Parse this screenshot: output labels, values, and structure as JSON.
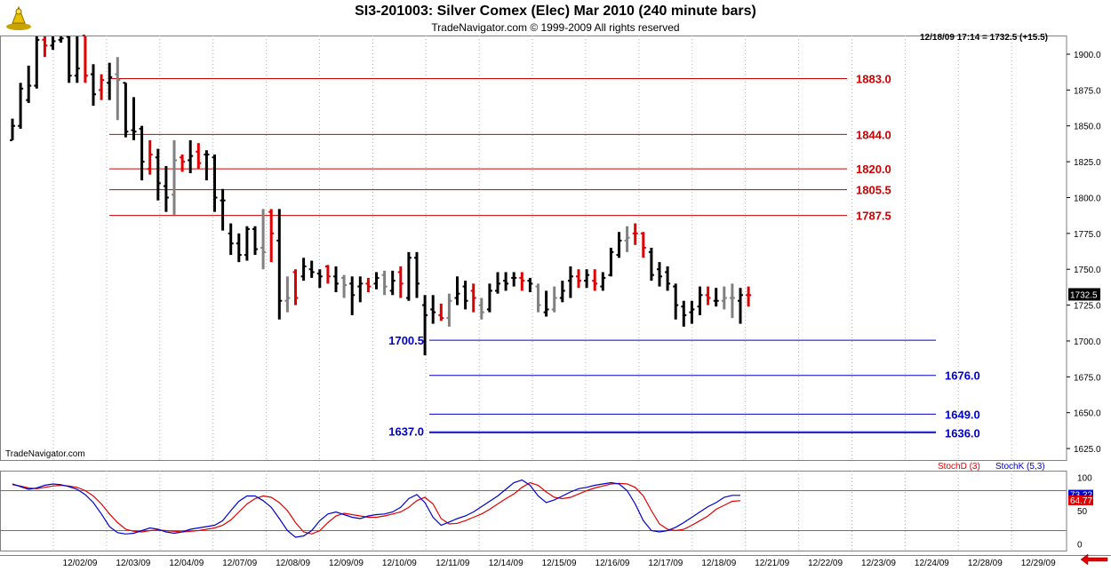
{
  "header": {
    "title": "SI3-201003:  Silver Comex (Elec) Mar 2010  (240 minute bars)",
    "subtitle": "TradeNavigator.com © 1999-2009 All rights reserved",
    "last_info": "12/18/09 17:14 = 1732.5 (+15.5)",
    "watermark": "TradeNavigator.com"
  },
  "colors": {
    "up_bar": "#000000",
    "down_bar": "#e00000",
    "neutral_bar": "#808080",
    "resistance": "#cc0000",
    "support": "#0000cc",
    "stoch_d": "#e00000",
    "stoch_k": "#0000cc"
  },
  "chart_data": [
    {
      "type": "ohlc",
      "ylim": [
        1617,
        1913
      ],
      "yticks": [
        "1625.0",
        "1650.0",
        "1675.0",
        "1700.0",
        "1725.0",
        "1750.0",
        "1775.0",
        "1800.0",
        "1825.0",
        "1850.0",
        "1875.0",
        "1900.0"
      ],
      "x_labels": [
        "12/02/09",
        "12/03/09",
        "12/04/09",
        "12/07/09",
        "12/08/09",
        "12/09/09",
        "12/10/09",
        "12/11/09",
        "12/14/09",
        "12/15/09",
        "12/16/09",
        "12/17/09",
        "12/18/09",
        "12/21/09",
        "12/22/09",
        "12/23/09",
        "12/24/09",
        "12/28/09",
        "12/29/09"
      ],
      "last_price": "1732.5",
      "bars": [
        {
          "o": 1840,
          "h": 1855,
          "l": 1840,
          "c": 1850,
          "col": "up"
        },
        {
          "o": 1850,
          "h": 1880,
          "l": 1848,
          "c": 1876,
          "col": "up"
        },
        {
          "o": 1868,
          "h": 1892,
          "l": 1866,
          "c": 1878,
          "col": "up"
        },
        {
          "o": 1878,
          "h": 1913,
          "l": 1876,
          "c": 1910,
          "col": "up"
        },
        {
          "o": 1910,
          "h": 1913,
          "l": 1898,
          "c": 1906,
          "col": "down"
        },
        {
          "o": 1906,
          "h": 1913,
          "l": 1903,
          "c": 1909,
          "col": "up"
        },
        {
          "o": 1910,
          "h": 1913,
          "l": 1908,
          "c": 1911,
          "col": "up"
        },
        {
          "o": 1912,
          "h": 1913,
          "l": 1880,
          "c": 1885,
          "col": "up"
        },
        {
          "o": 1885,
          "h": 1913,
          "l": 1880,
          "c": 1890,
          "col": "up"
        },
        {
          "o": 1913,
          "h": 1913,
          "l": 1880,
          "c": 1885,
          "col": "down"
        },
        {
          "o": 1886,
          "h": 1893,
          "l": 1864,
          "c": 1872,
          "col": "up"
        },
        {
          "o": 1875,
          "h": 1886,
          "l": 1868,
          "c": 1882,
          "col": "down"
        },
        {
          "o": 1880,
          "h": 1894,
          "l": 1868,
          "c": 1884,
          "col": "up"
        },
        {
          "o": 1886,
          "h": 1898,
          "l": 1854,
          "c": 1882,
          "col": "neutral"
        },
        {
          "o": 1880,
          "h": 1880,
          "l": 1842,
          "c": 1846,
          "col": "up"
        },
        {
          "o": 1847,
          "h": 1870,
          "l": 1840,
          "c": 1846,
          "col": "up"
        },
        {
          "o": 1848,
          "h": 1850,
          "l": 1812,
          "c": 1825,
          "col": "up"
        },
        {
          "o": 1820,
          "h": 1840,
          "l": 1816,
          "c": 1830,
          "col": "down"
        },
        {
          "o": 1828,
          "h": 1834,
          "l": 1798,
          "c": 1810,
          "col": "up"
        },
        {
          "o": 1808,
          "h": 1822,
          "l": 1790,
          "c": 1800,
          "col": "up"
        },
        {
          "o": 1802,
          "h": 1840,
          "l": 1788,
          "c": 1826,
          "col": "neutral"
        },
        {
          "o": 1828,
          "h": 1830,
          "l": 1818,
          "c": 1825,
          "col": "down"
        },
        {
          "o": 1826,
          "h": 1840,
          "l": 1817,
          "c": 1829,
          "col": "up"
        },
        {
          "o": 1832,
          "h": 1838,
          "l": 1820,
          "c": 1824,
          "col": "down"
        },
        {
          "o": 1830,
          "h": 1833,
          "l": 1812,
          "c": 1830,
          "col": "up"
        },
        {
          "o": 1828,
          "h": 1830,
          "l": 1790,
          "c": 1800,
          "col": "up"
        },
        {
          "o": 1798,
          "h": 1806,
          "l": 1777,
          "c": 1798,
          "col": "up"
        },
        {
          "o": 1775,
          "h": 1782,
          "l": 1760,
          "c": 1768,
          "col": "up"
        },
        {
          "o": 1768,
          "h": 1775,
          "l": 1755,
          "c": 1760,
          "col": "up"
        },
        {
          "o": 1760,
          "h": 1780,
          "l": 1756,
          "c": 1778,
          "col": "up"
        },
        {
          "o": 1778,
          "h": 1780,
          "l": 1760,
          "c": 1764,
          "col": "up"
        },
        {
          "o": 1765,
          "h": 1792,
          "l": 1750,
          "c": 1762,
          "col": "neutral"
        },
        {
          "o": 1790,
          "h": 1792,
          "l": 1755,
          "c": 1775,
          "col": "down"
        },
        {
          "o": 1770,
          "h": 1792,
          "l": 1715,
          "c": 1728,
          "col": "up"
        },
        {
          "o": 1728,
          "h": 1745,
          "l": 1720,
          "c": 1730,
          "col": "neutral"
        },
        {
          "o": 1748,
          "h": 1750,
          "l": 1725,
          "c": 1730,
          "col": "down"
        },
        {
          "o": 1745,
          "h": 1758,
          "l": 1742,
          "c": 1752,
          "col": "up"
        },
        {
          "o": 1750,
          "h": 1756,
          "l": 1744,
          "c": 1748,
          "col": "up"
        },
        {
          "o": 1747,
          "h": 1750,
          "l": 1737,
          "c": 1745,
          "col": "up"
        },
        {
          "o": 1752,
          "h": 1753,
          "l": 1740,
          "c": 1745,
          "col": "down"
        },
        {
          "o": 1745,
          "h": 1752,
          "l": 1734,
          "c": 1740,
          "col": "up"
        },
        {
          "o": 1744,
          "h": 1746,
          "l": 1730,
          "c": 1739,
          "col": "neutral"
        },
        {
          "o": 1740,
          "h": 1745,
          "l": 1718,
          "c": 1732,
          "col": "up"
        },
        {
          "o": 1738,
          "h": 1745,
          "l": 1727,
          "c": 1740,
          "col": "up"
        },
        {
          "o": 1740,
          "h": 1744,
          "l": 1734,
          "c": 1738,
          "col": "down"
        },
        {
          "o": 1740,
          "h": 1748,
          "l": 1736,
          "c": 1744,
          "col": "up"
        },
        {
          "o": 1746,
          "h": 1749,
          "l": 1732,
          "c": 1738,
          "col": "neutral"
        },
        {
          "o": 1735,
          "h": 1749,
          "l": 1732,
          "c": 1742,
          "col": "up"
        },
        {
          "o": 1748,
          "h": 1752,
          "l": 1730,
          "c": 1740,
          "col": "down"
        },
        {
          "o": 1730,
          "h": 1762,
          "l": 1728,
          "c": 1758,
          "col": "up"
        },
        {
          "o": 1758,
          "h": 1762,
          "l": 1730,
          "c": 1740,
          "col": "up"
        },
        {
          "o": 1725,
          "h": 1732,
          "l": 1690,
          "c": 1718,
          "col": "up"
        },
        {
          "o": 1722,
          "h": 1732,
          "l": 1712,
          "c": 1720,
          "col": "up"
        },
        {
          "o": 1718,
          "h": 1726,
          "l": 1714,
          "c": 1716,
          "col": "down"
        },
        {
          "o": 1716,
          "h": 1733,
          "l": 1710,
          "c": 1728,
          "col": "neutral"
        },
        {
          "o": 1730,
          "h": 1745,
          "l": 1725,
          "c": 1733,
          "col": "up"
        },
        {
          "o": 1738,
          "h": 1742,
          "l": 1722,
          "c": 1728,
          "col": "up"
        },
        {
          "o": 1735,
          "h": 1740,
          "l": 1720,
          "c": 1730,
          "col": "down"
        },
        {
          "o": 1725,
          "h": 1730,
          "l": 1715,
          "c": 1720,
          "col": "neutral"
        },
        {
          "o": 1722,
          "h": 1740,
          "l": 1720,
          "c": 1735,
          "col": "up"
        },
        {
          "o": 1735,
          "h": 1748,
          "l": 1733,
          "c": 1740,
          "col": "up"
        },
        {
          "o": 1742,
          "h": 1748,
          "l": 1735,
          "c": 1740,
          "col": "up"
        },
        {
          "o": 1744,
          "h": 1748,
          "l": 1738,
          "c": 1744,
          "col": "up"
        },
        {
          "o": 1744,
          "h": 1748,
          "l": 1735,
          "c": 1742,
          "col": "down"
        },
        {
          "o": 1742,
          "h": 1744,
          "l": 1734,
          "c": 1740,
          "col": "up"
        },
        {
          "o": 1738,
          "h": 1740,
          "l": 1720,
          "c": 1725,
          "col": "neutral"
        },
        {
          "o": 1720,
          "h": 1735,
          "l": 1717,
          "c": 1722,
          "col": "up"
        },
        {
          "o": 1722,
          "h": 1738,
          "l": 1720,
          "c": 1730,
          "col": "neutral"
        },
        {
          "o": 1730,
          "h": 1742,
          "l": 1727,
          "c": 1735,
          "col": "up"
        },
        {
          "o": 1742,
          "h": 1752,
          "l": 1730,
          "c": 1745,
          "col": "up"
        },
        {
          "o": 1745,
          "h": 1750,
          "l": 1737,
          "c": 1742,
          "col": "down"
        },
        {
          "o": 1742,
          "h": 1750,
          "l": 1737,
          "c": 1746,
          "col": "up"
        },
        {
          "o": 1742,
          "h": 1750,
          "l": 1735,
          "c": 1740,
          "col": "down"
        },
        {
          "o": 1738,
          "h": 1748,
          "l": 1735,
          "c": 1744,
          "col": "up"
        },
        {
          "o": 1746,
          "h": 1765,
          "l": 1745,
          "c": 1762,
          "col": "up"
        },
        {
          "o": 1760,
          "h": 1776,
          "l": 1758,
          "c": 1770,
          "col": "up"
        },
        {
          "o": 1770,
          "h": 1780,
          "l": 1762,
          "c": 1772,
          "col": "neutral"
        },
        {
          "o": 1775,
          "h": 1782,
          "l": 1767,
          "c": 1775,
          "col": "down"
        },
        {
          "o": 1775,
          "h": 1776,
          "l": 1758,
          "c": 1765,
          "col": "down"
        },
        {
          "o": 1762,
          "h": 1765,
          "l": 1742,
          "c": 1746,
          "col": "up"
        },
        {
          "o": 1750,
          "h": 1755,
          "l": 1738,
          "c": 1745,
          "col": "up"
        },
        {
          "o": 1748,
          "h": 1752,
          "l": 1735,
          "c": 1740,
          "col": "up"
        },
        {
          "o": 1738,
          "h": 1740,
          "l": 1715,
          "c": 1725,
          "col": "up"
        },
        {
          "o": 1724,
          "h": 1728,
          "l": 1710,
          "c": 1718,
          "col": "up"
        },
        {
          "o": 1720,
          "h": 1728,
          "l": 1712,
          "c": 1722,
          "col": "up"
        },
        {
          "o": 1724,
          "h": 1738,
          "l": 1718,
          "c": 1732,
          "col": "up"
        },
        {
          "o": 1732,
          "h": 1738,
          "l": 1725,
          "c": 1730,
          "col": "down"
        },
        {
          "o": 1728,
          "h": 1737,
          "l": 1724,
          "c": 1728,
          "col": "up"
        },
        {
          "o": 1728,
          "h": 1738,
          "l": 1722,
          "c": 1730,
          "col": "neutral"
        },
        {
          "o": 1730,
          "h": 1740,
          "l": 1716,
          "c": 1730,
          "col": "neutral"
        },
        {
          "o": 1728,
          "h": 1737,
          "l": 1712,
          "c": 1732,
          "col": "up"
        },
        {
          "o": 1732,
          "h": 1738,
          "l": 1724,
          "c": 1732,
          "col": "down"
        }
      ],
      "levels": [
        {
          "value": 1883.0,
          "label": "1883.0",
          "kind": "resistance"
        },
        {
          "value": 1844.0,
          "label": "1844.0",
          "kind": "resistance"
        },
        {
          "value": 1820.0,
          "label": "1820.0",
          "kind": "resistance"
        },
        {
          "value": 1805.5,
          "label": "1805.5",
          "kind": "resistance"
        },
        {
          "value": 1787.5,
          "label": "1787.5",
          "kind": "resistance"
        },
        {
          "value": 1700.5,
          "label": "1700.5",
          "kind": "support",
          "label_side": "left"
        },
        {
          "value": 1676.0,
          "label": "1676.0",
          "kind": "support",
          "label_side": "right"
        },
        {
          "value": 1649.0,
          "label": "1649.0",
          "kind": "support",
          "label_side": "right"
        },
        {
          "value": 1636.0,
          "label": "1636.0",
          "kind": "support",
          "label_side": "right"
        },
        {
          "value": 1637.0,
          "label": "1637.0",
          "kind": "support",
          "label_side": "left"
        }
      ]
    },
    {
      "type": "line",
      "ylim": [
        -10,
        110
      ],
      "yticks": [
        "100",
        "50",
        "0"
      ],
      "guides": [
        80,
        20
      ],
      "last_values": {
        "k": "73.22",
        "d": "64.77"
      },
      "series": [
        {
          "name": "StochD (3)",
          "key": "d",
          "values": [
            89,
            87,
            84,
            83,
            85,
            87,
            88,
            87,
            85,
            80,
            72,
            60,
            45,
            32,
            22,
            19,
            18,
            20,
            21,
            20,
            19,
            18,
            19,
            20,
            22,
            24,
            28,
            36,
            48,
            60,
            68,
            72,
            70,
            62,
            50,
            32,
            18,
            15,
            20,
            32,
            42,
            46,
            44,
            42,
            40,
            40,
            42,
            45,
            48,
            55,
            65,
            70,
            60,
            38,
            30,
            31,
            35,
            40,
            45,
            52,
            60,
            68,
            75,
            85,
            92,
            88,
            78,
            70,
            68,
            70,
            75,
            80,
            84,
            87,
            90,
            91,
            90,
            85,
            72,
            50,
            30,
            22,
            20,
            22,
            28,
            35,
            42,
            52,
            58,
            64,
            65
          ]
        },
        {
          "name": "StochK (5,3)",
          "key": "k",
          "values": [
            90,
            86,
            82,
            84,
            88,
            90,
            89,
            86,
            82,
            74,
            62,
            45,
            26,
            17,
            15,
            16,
            20,
            24,
            22,
            18,
            16,
            18,
            22,
            24,
            26,
            28,
            35,
            50,
            64,
            72,
            72,
            65,
            55,
            38,
            20,
            10,
            12,
            20,
            35,
            45,
            48,
            44,
            40,
            38,
            42,
            44,
            45,
            48,
            55,
            68,
            74,
            62,
            40,
            28,
            33,
            38,
            42,
            48,
            56,
            64,
            72,
            82,
            92,
            96,
            88,
            72,
            62,
            66,
            72,
            78,
            83,
            85,
            88,
            90,
            92,
            90,
            80,
            60,
            35,
            20,
            18,
            20,
            25,
            32,
            40,
            48,
            56,
            62,
            70,
            73,
            73
          ]
        }
      ]
    }
  ]
}
